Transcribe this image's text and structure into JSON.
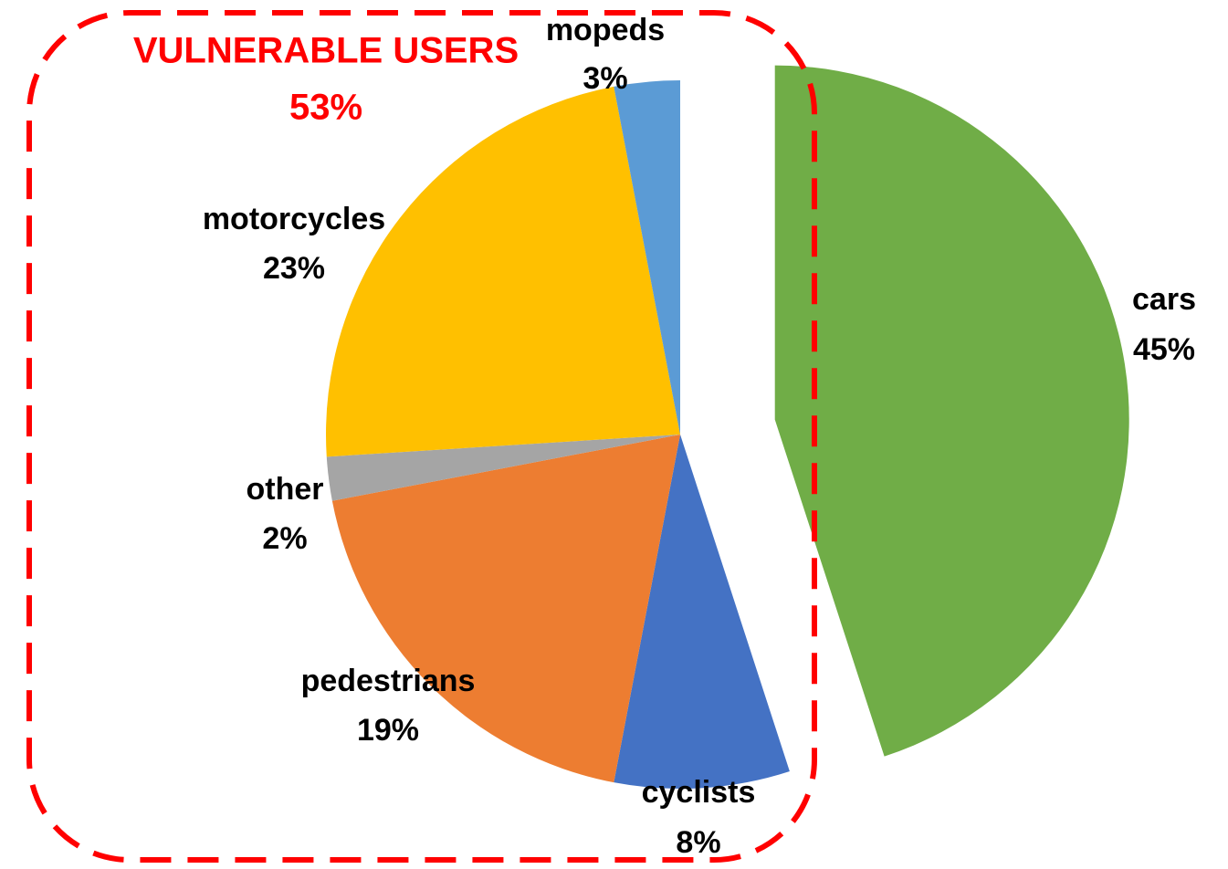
{
  "chart_data": {
    "type": "pie",
    "categories": [
      "cars",
      "cyclists",
      "pedestrians",
      "other",
      "motorcycles",
      "mopeds"
    ],
    "values": [
      45,
      8,
      19,
      2,
      23,
      3
    ],
    "value_labels": [
      "45%",
      "8%",
      "19%",
      "2%",
      "23%",
      "3%"
    ],
    "colors": [
      "#70ad47",
      "#4472c4",
      "#ed7d31",
      "#a5a5a5",
      "#ffc000",
      "#5b9bd5"
    ],
    "annotations": [
      "VULNERABLE USERS",
      "53%"
    ]
  }
}
